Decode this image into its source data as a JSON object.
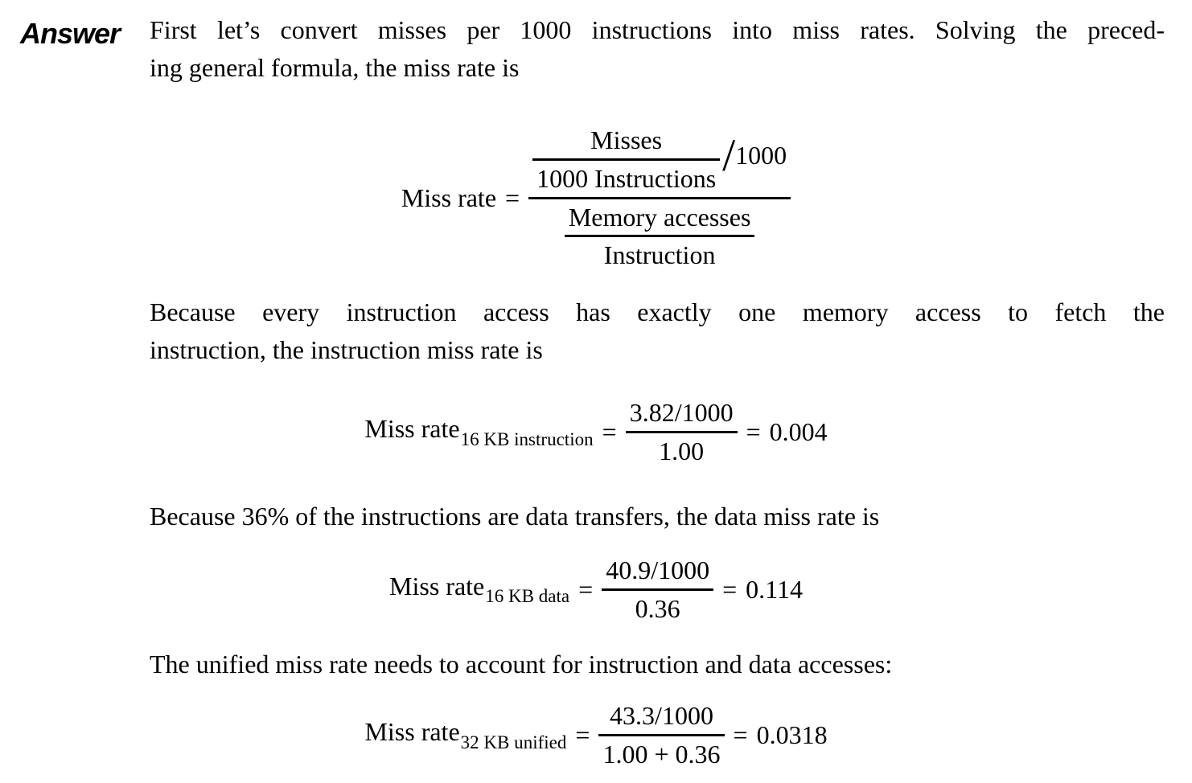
{
  "label": "Answer",
  "paragraphs": [
    {
      "lines": [
        "First let’s convert misses per 1000 instructions into miss rates. Solving the preced-",
        "ing general formula, the miss rate is"
      ]
    },
    {
      "lines": [
        "Because every instruction access has exactly one memory access to fetch the",
        "instruction, the instruction miss rate is"
      ]
    },
    {
      "lines": [
        "Because 36% of the instructions are data transfers, the data miss rate is"
      ]
    },
    {
      "lines": [
        "The unified miss rate needs to account for instruction and data accesses:"
      ]
    }
  ],
  "formulas": {
    "general": {
      "lhs": "Miss rate",
      "equals": "=",
      "numerator_fraction": {
        "num": "Misses",
        "den": "1000 Instructions"
      },
      "slash": "/",
      "slash_value": "1000",
      "denominator_fraction": {
        "num": "Memory accesses",
        "den": "Instruction"
      }
    },
    "instruction16kb": {
      "lhs": "Miss rate",
      "subscript": "16 KB instruction",
      "equals": "=",
      "num": "3.82/1000",
      "den": "1.00",
      "equals2": "=",
      "result": "0.004"
    },
    "data16kb": {
      "lhs": "Miss rate",
      "subscript": "16 KB data",
      "equals": "=",
      "num": "40.9/1000",
      "den": "0.36",
      "equals2": "=",
      "result": "0.114"
    },
    "unified32kb": {
      "lhs": "Miss rate",
      "subscript": "32 KB unified",
      "equals": "=",
      "num": "43.3/1000",
      "den": "1.00 + 0.36",
      "equals2": "=",
      "result": "0.0318"
    }
  }
}
